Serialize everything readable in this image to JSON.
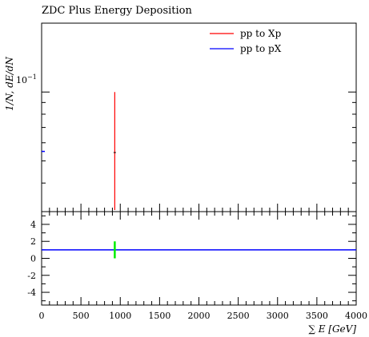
{
  "chart_data": [
    {
      "type": "line",
      "title": "ZDC Plus Energy Deposition",
      "ylabel": "1/N, dE/dN",
      "yscale": "log",
      "ytick_label": "10^{-1}",
      "ylim": [
        0.03,
        0.2
      ],
      "xlim": [
        0,
        4000
      ],
      "legend_position": "top-right",
      "series": [
        {
          "name": "pp to Xp",
          "color": "#ff0000",
          "x": [
            930
          ],
          "y": [
            0.1
          ],
          "yerr_low": [
            0.0305
          ]
        },
        {
          "name": "pp to pX",
          "color": "#0000ff",
          "x": [
            0
          ],
          "y": [
            0.055
          ]
        }
      ]
    },
    {
      "type": "line",
      "xlabel": "∑ E [GeV]",
      "xlim": [
        0,
        4000
      ],
      "ylim": [
        -5.5,
        5.5
      ],
      "yticks": [
        -4,
        -2,
        0,
        2,
        4
      ],
      "xticks": [
        0,
        500,
        1000,
        1500,
        2000,
        2500,
        3000,
        3500,
        4000
      ],
      "reference_line": {
        "y": 1,
        "color": "#0000ff"
      },
      "ratio_points": [
        {
          "x": 930,
          "y": 1,
          "y_low": 0,
          "y_high": 2,
          "color": "#00ee00"
        }
      ]
    }
  ]
}
